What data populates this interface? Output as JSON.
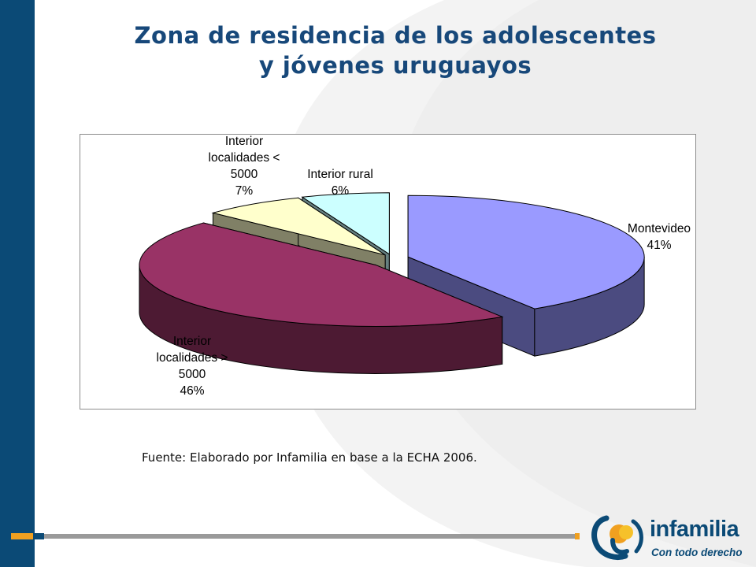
{
  "slide": {
    "title_line1": "Zona de residencia de los adolescentes",
    "title_line2": "y jóvenes uruguayos",
    "source": "Fuente: Elaborado por Infamilia en base a la ECHA 2006."
  },
  "logo": {
    "name": "infamilia",
    "tagline": "Con todo derecho"
  },
  "colors": {
    "band": "#0b4a76",
    "title": "#17487a",
    "accent_orange": "#f0a020"
  },
  "chart_data": {
    "type": "pie",
    "title": "",
    "three_d": true,
    "exploded": true,
    "slices": [
      {
        "label_lines": [
          "Montevideo",
          "41%"
        ],
        "value": 41,
        "color": "#9a9aff",
        "side_color": "#4b4b80"
      },
      {
        "label_lines": [
          "Interior",
          "localidades >",
          "5000",
          "46%"
        ],
        "value": 46,
        "color": "#993366",
        "side_color": "#4d1a33"
      },
      {
        "label_lines": [
          "Interior",
          "localidades <",
          "5000",
          "7%"
        ],
        "value": 7,
        "color": "#ffffcc",
        "side_color": "#808066"
      },
      {
        "label_lines": [
          "Interior rural",
          "6%"
        ],
        "value": 6,
        "color": "#ccffff",
        "side_color": "#668080"
      }
    ]
  }
}
